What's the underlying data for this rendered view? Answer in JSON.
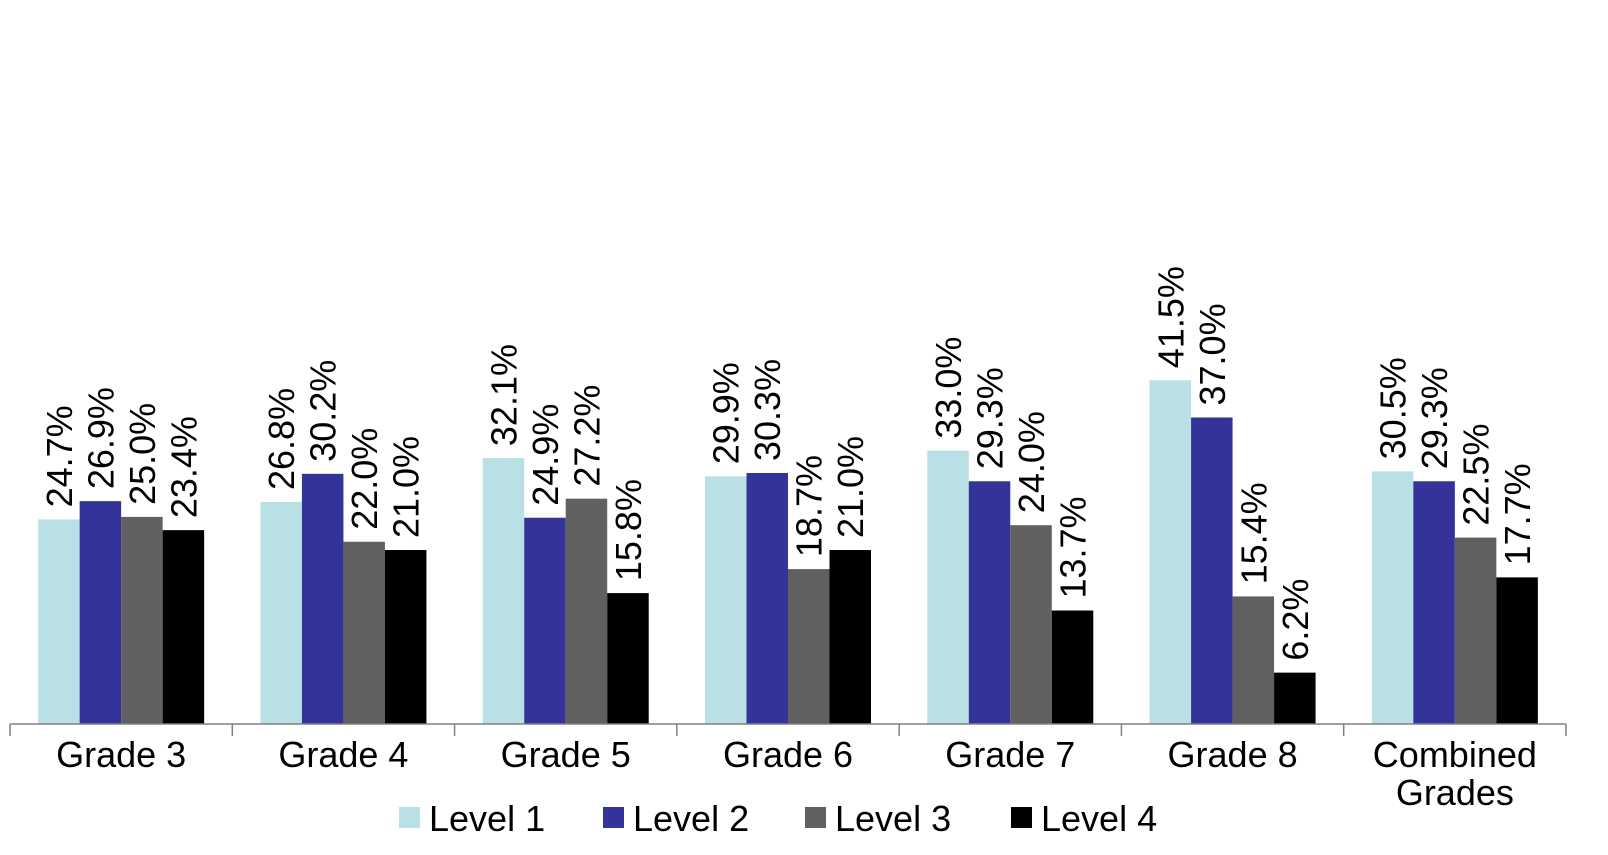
{
  "chart_data": {
    "type": "bar",
    "categories": [
      "Grade 3",
      "Grade 4",
      "Grade 5",
      "Grade 6",
      "Grade 7",
      "Grade 8",
      "Combined Grades"
    ],
    "series": [
      {
        "name": "Level 1",
        "color": "#B9E0E4",
        "values": [
          24.7,
          26.8,
          32.1,
          29.9,
          33.0,
          41.5,
          30.5
        ],
        "labels": [
          "24.7%",
          "26.8%",
          "32.1%",
          "29.9%",
          "33.0%",
          "41.5%",
          "30.5%"
        ]
      },
      {
        "name": "Level 2",
        "color": "#33339A",
        "values": [
          26.9,
          30.2,
          24.9,
          30.3,
          29.3,
          37.0,
          29.3
        ],
        "labels": [
          "26.9%",
          "30.2%",
          "24.9%",
          "30.3%",
          "29.3%",
          "37.0%",
          "29.3%"
        ]
      },
      {
        "name": "Level 3",
        "color": "#606060",
        "values": [
          25.0,
          22.0,
          27.2,
          18.7,
          24.0,
          15.4,
          22.5
        ],
        "labels": [
          "25.0%",
          "22.0%",
          "27.2%",
          "18.7%",
          "24.0%",
          "15.4%",
          "22.5%"
        ]
      },
      {
        "name": "Level 4",
        "color": "#000000",
        "values": [
          23.4,
          21.0,
          15.8,
          21.0,
          13.7,
          6.2,
          17.7
        ],
        "labels": [
          "23.4%",
          "21.0%",
          "15.8%",
          "21.0%",
          "13.7%",
          "6.2%",
          "17.7%"
        ]
      }
    ],
    "ylim": [
      0,
      50
    ],
    "grid": false,
    "legend_position": "bottom",
    "axis_color": "#808080"
  }
}
